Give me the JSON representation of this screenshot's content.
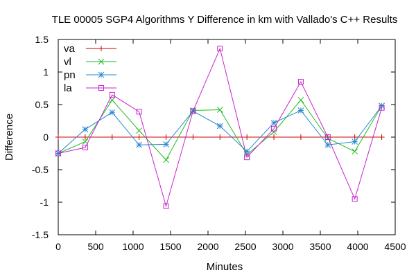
{
  "chart_data": {
    "type": "line",
    "title": "TLE 00005 SGP4 Algorithms Y Difference in km with Vallado's C++ Results",
    "xlabel": "Minutes",
    "ylabel": "Difference",
    "xlim": [
      0,
      4500
    ],
    "ylim": [
      -1.5,
      1.5
    ],
    "xticks": [
      0,
      500,
      1000,
      1500,
      2000,
      2500,
      3000,
      3500,
      4000,
      4500
    ],
    "yticks": [
      -1.5,
      -1,
      -0.5,
      0,
      0.5,
      1,
      1.5
    ],
    "grid": false,
    "legend_position": "top-left",
    "x": [
      0,
      360,
      720,
      1080,
      1440,
      1800,
      2160,
      2520,
      2880,
      3240,
      3600,
      3960,
      4320
    ],
    "series": [
      {
        "name": "va",
        "color": "#cc0000",
        "marker": "plus",
        "values": [
          0,
          0,
          0,
          0,
          0,
          0,
          0,
          0,
          0,
          0,
          0,
          0,
          0
        ]
      },
      {
        "name": "vl",
        "color": "#22bb22",
        "marker": "x",
        "values": [
          -0.25,
          -0.07,
          0.57,
          0.1,
          -0.35,
          0.41,
          0.42,
          -0.27,
          0.08,
          0.57,
          -0.02,
          -0.22,
          0.48
        ]
      },
      {
        "name": "pn",
        "color": "#2288cc",
        "marker": "star",
        "values": [
          -0.25,
          0.12,
          0.38,
          -0.12,
          -0.11,
          0.4,
          0.17,
          -0.22,
          0.22,
          0.41,
          -0.12,
          -0.07,
          0.48
        ]
      },
      {
        "name": "la",
        "color": "#cc22cc",
        "marker": "box",
        "values": [
          -0.25,
          -0.16,
          0.65,
          0.39,
          -1.06,
          0.4,
          1.36,
          -0.31,
          0.13,
          0.85,
          0.0,
          -0.95,
          0.45
        ]
      }
    ]
  }
}
